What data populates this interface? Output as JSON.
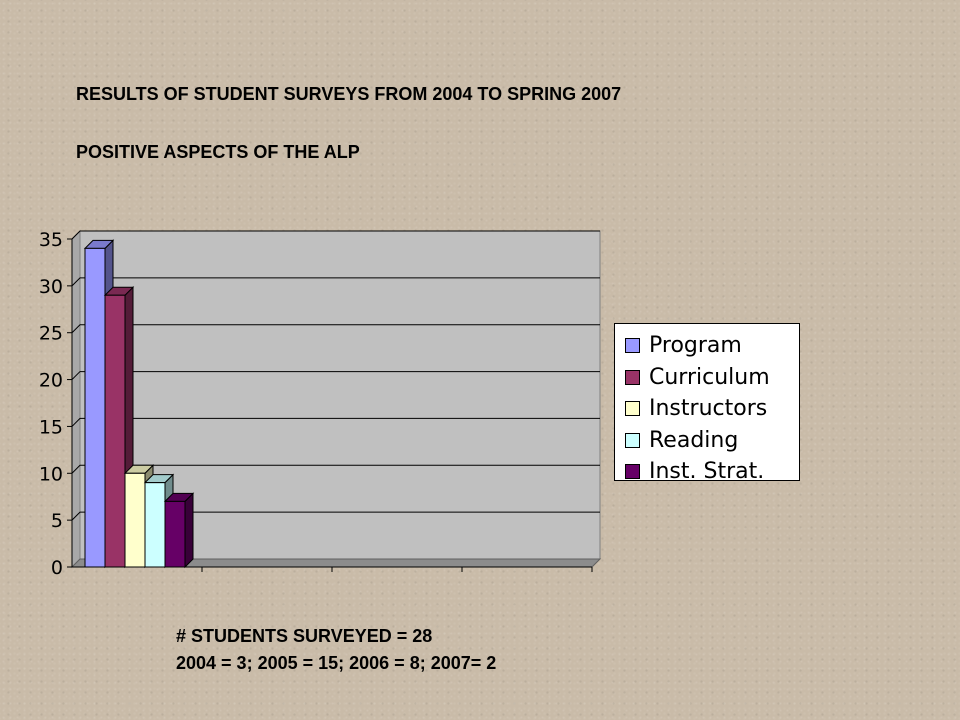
{
  "title": "RESULTS OF STUDENT SURVEYS FROM 2004 TO  SPRING 2007",
  "subtitle": "POSITIVE ASPECTS OF THE ALP",
  "footer": {
    "line1": "# STUDENTS SURVEYED = 28",
    "line2": "2004 = 3; 2005 = 15; 2006 = 8; 2007= 2"
  },
  "chart_data": {
    "type": "bar",
    "style": "3d-clustered",
    "categories": [
      ""
    ],
    "series": [
      {
        "name": "Program",
        "values": [
          34
        ],
        "color": "#9999ff"
      },
      {
        "name": "Curriculum",
        "values": [
          29
        ],
        "color": "#993366"
      },
      {
        "name": "Instructors",
        "values": [
          10
        ],
        "color": "#ffffcc"
      },
      {
        "name": "Reading",
        "values": [
          9
        ],
        "color": "#ccffff"
      },
      {
        "name": "Inst. Strat.",
        "values": [
          7
        ],
        "color": "#660066"
      }
    ],
    "ylim": [
      0,
      35
    ],
    "yticks": [
      "0",
      "5",
      "10",
      "15",
      "20",
      "25",
      "30",
      "35"
    ],
    "grid": true,
    "legend": "right",
    "plot_background": "#c0c0c0"
  }
}
